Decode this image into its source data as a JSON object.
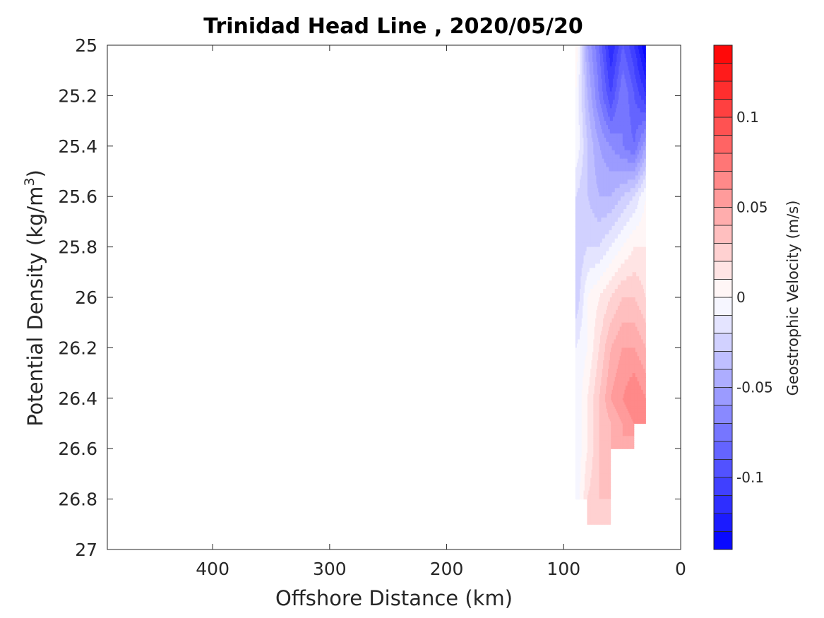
{
  "chart_data": {
    "type": "heatmap",
    "title": "Trinidad Head Line , 2020/05/20",
    "xlabel": "Offshore Distance (km)",
    "ylabel_main": "Potential Density (kg/m",
    "ylabel_sup": "3",
    "ylabel_close": ")",
    "colorbar_label": "Geostrophic Velocity (m/s)",
    "xlim": [
      490,
      0
    ],
    "x_reversed": true,
    "ylim": [
      25,
      27
    ],
    "y_reversed": true,
    "x_ticks": [
      400,
      300,
      200,
      100,
      0
    ],
    "x_tick_labels": [
      "400",
      "300",
      "200",
      "100",
      "0"
    ],
    "y_ticks": [
      25,
      25.2,
      25.4,
      25.6,
      25.8,
      26,
      26.2,
      26.4,
      26.6,
      26.8,
      27
    ],
    "y_tick_labels": [
      "25",
      "25.2",
      "25.4",
      "25.6",
      "25.8",
      "26",
      "26.2",
      "26.4",
      "26.6",
      "26.8",
      "27"
    ],
    "colorbar": {
      "clim": [
        -0.14,
        0.14
      ],
      "levels": 28,
      "ticks": [
        0.1,
        0.05,
        0,
        -0.05,
        -0.1
      ],
      "tick_labels": [
        "0.1",
        "0.05",
        "0",
        "-0.05",
        "-0.1"
      ],
      "positive_color": "#ff0000",
      "negative_color": "#0000ff",
      "zero_color": "#ffffff"
    },
    "x": [
      30,
      40,
      50,
      60,
      70,
      80,
      90
    ],
    "y": [
      25.0,
      25.2,
      25.4,
      25.6,
      25.8,
      26.0,
      26.2,
      26.4,
      26.5,
      26.6,
      26.8,
      26.9
    ],
    "z": [
      [
        -0.14,
        -0.11,
        -0.09,
        -0.12,
        -0.08,
        -0.05,
        0.01
      ],
      [
        -0.11,
        -0.09,
        -0.07,
        -0.1,
        -0.07,
        -0.04,
        0.0
      ],
      [
        -0.05,
        -0.08,
        -0.07,
        -0.06,
        -0.05,
        -0.03,
        0.0
      ],
      [
        0.0,
        -0.02,
        -0.03,
        -0.04,
        -0.04,
        -0.03,
        -0.02
      ],
      [
        0.01,
        0.01,
        0.0,
        -0.01,
        -0.02,
        -0.02,
        -0.03
      ],
      [
        0.02,
        0.03,
        0.03,
        0.02,
        0.01,
        0.0,
        -0.03
      ],
      [
        0.04,
        0.05,
        0.05,
        0.04,
        0.02,
        0.0,
        -0.01
      ],
      [
        0.06,
        0.07,
        0.06,
        0.05,
        0.03,
        0.01,
        -0.01
      ],
      [
        0.07,
        0.06,
        0.05,
        0.04,
        0.03,
        0.01,
        -0.01
      ],
      [
        null,
        0.04,
        0.05,
        0.04,
        0.03,
        0.01,
        -0.01
      ],
      [
        null,
        null,
        null,
        0.03,
        0.03,
        0.02,
        -0.01
      ],
      [
        null,
        null,
        null,
        0.02,
        0.02,
        0.02,
        null
      ]
    ]
  }
}
